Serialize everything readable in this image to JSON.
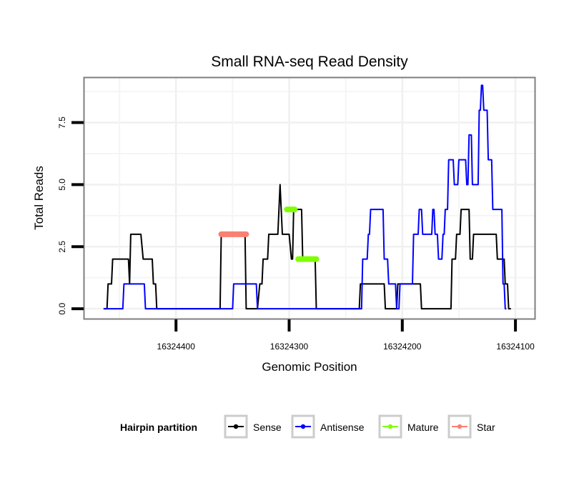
{
  "chart_data": {
    "type": "line",
    "title": "Small RNA-seq Read Density",
    "xlabel": "Genomic Position",
    "ylabel": "Total Reads",
    "x_reversed": true,
    "xlim": [
      16324481,
      16324083
    ],
    "ylim": [
      -0.4,
      9.3
    ],
    "xticks": [
      16324400,
      16324300,
      16324200,
      16324100
    ],
    "xtick_labels": [
      "16324400",
      "16324300",
      "16324200",
      "16324100"
    ],
    "yticks": [
      0.0,
      2.5,
      5.0,
      7.5
    ],
    "ytick_labels": [
      "0.0",
      "2.5",
      "5.0",
      "7.5"
    ],
    "grid": true,
    "legend": {
      "title": "Hairpin partition",
      "position": "bottom",
      "entries": [
        {
          "label": "Sense",
          "color": "#000000"
        },
        {
          "label": "Antisense",
          "color": "#0000FF"
        },
        {
          "label": "Mature",
          "color": "#7FFF00"
        },
        {
          "label": "Star",
          "color": "#FA8072"
        }
      ]
    },
    "series": [
      {
        "name": "Sense",
        "color": "#000000",
        "x": [
          16324464,
          16324461,
          16324460,
          16324457,
          16324456,
          16324442,
          16324441,
          16324440,
          16324431,
          16324429,
          16324428,
          16324421,
          16324420,
          16324418,
          16324417,
          16324361,
          16324360,
          16324339,
          16324338,
          16324328,
          16324326,
          16324324,
          16324323,
          16324319,
          16324318,
          16324310,
          16324308,
          16324306,
          16324305,
          16324301,
          16324300,
          16324298,
          16324297,
          16324296,
          16324295,
          16324289,
          16324288,
          16324277,
          16324276,
          16324238,
          16324237,
          16324216,
          16324215,
          16324205,
          16324204,
          16324184,
          16324183,
          16324157,
          16324156,
          16324153,
          16324152,
          16324149,
          16324148,
          16324141,
          16324140,
          16324138,
          16324137,
          16324136,
          16324135,
          16324117,
          16324116,
          16324110,
          16324109,
          16324107,
          16324106,
          16324104
        ],
        "y": [
          0,
          0,
          1,
          1,
          2,
          2,
          1,
          3,
          3,
          2,
          2,
          2,
          1,
          1,
          0,
          0,
          3,
          3,
          0,
          0,
          1,
          1,
          2,
          2,
          3,
          3,
          5,
          3,
          3,
          3,
          3,
          2,
          2,
          4,
          4,
          4,
          2,
          2,
          0,
          0,
          1,
          1,
          0,
          0,
          1,
          1,
          0,
          0,
          2,
          2,
          3,
          3,
          4,
          4,
          2,
          2,
          3,
          3,
          3,
          3,
          2,
          2,
          1,
          1,
          0,
          0
        ]
      },
      {
        "name": "Antisense",
        "color": "#0000FF",
        "x": [
          16324464,
          16324447,
          16324446,
          16324428,
          16324427,
          16324350,
          16324349,
          16324329,
          16324328,
          16324236,
          16324235,
          16324231,
          16324230,
          16324229,
          16324228,
          16324217,
          16324216,
          16324213,
          16324212,
          16324206,
          16324205,
          16324203,
          16324202,
          16324191,
          16324190,
          16324186,
          16324185,
          16324183,
          16324182,
          16324181,
          16324180,
          16324174,
          16324173,
          16324172,
          16324171,
          16324169,
          16324168,
          16324165,
          16324164,
          16324163,
          16324162,
          16324160,
          16324159,
          16324155,
          16324154,
          16324151,
          16324150,
          16324144,
          16324143,
          16324142,
          16324141,
          16324139,
          16324138,
          16324136,
          16324135,
          16324133,
          16324132,
          16324131,
          16324130,
          16324129,
          16324128,
          16324125,
          16324124,
          16324121,
          16324120,
          16324114,
          16324113,
          16324112,
          16324111,
          16324110,
          16324109,
          16324108
        ],
        "y": [
          0,
          0,
          1,
          1,
          0,
          0,
          1,
          1,
          0,
          0,
          2,
          2,
          3,
          3,
          4,
          4,
          2,
          2,
          1,
          1,
          0,
          0,
          1,
          1,
          3,
          3,
          4,
          4,
          3,
          3,
          3,
          3,
          4,
          4,
          3,
          3,
          2,
          2,
          3,
          3,
          4,
          4,
          6,
          6,
          5,
          5,
          6,
          6,
          5,
          5,
          7,
          7,
          5,
          5,
          5,
          5,
          8,
          8,
          9,
          9,
          8,
          8,
          6,
          6,
          4,
          4,
          4,
          4,
          1,
          1,
          0,
          0
        ]
      },
      {
        "name": "Mature",
        "color": "#7FFF00",
        "segments": [
          {
            "x": [
              16324302,
              16324295
            ],
            "y": [
              4,
              4
            ]
          },
          {
            "x": [
              16324292,
              16324276
            ],
            "y": [
              2,
              2
            ]
          }
        ]
      },
      {
        "name": "Star",
        "color": "#FA8072",
        "segments": [
          {
            "x": [
              16324360,
              16324338
            ],
            "y": [
              3,
              3
            ]
          }
        ]
      }
    ]
  }
}
